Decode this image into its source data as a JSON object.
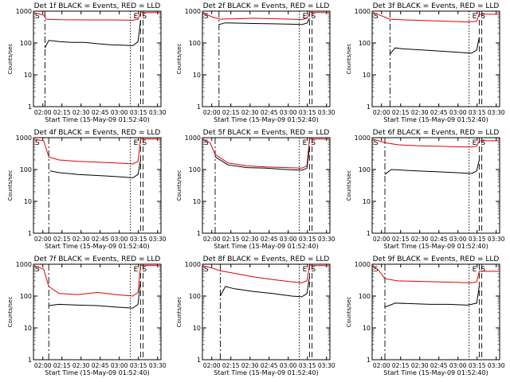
{
  "colors": {
    "events": "#000000",
    "lld": "#e00000",
    "axis": "#000000"
  },
  "legend_text": "BLACK = Events, RED = LLD",
  "shared": {
    "ylabel": "Counts/sec",
    "xlabel": "Start Time (15-May-09 01:52:40)",
    "xticks": [
      "02:00",
      "02:15",
      "02:30",
      "02:45",
      "03:00",
      "03:15",
      "03:30"
    ],
    "xtick_minutes": [
      7.33,
      22.33,
      37.33,
      52.33,
      67.33,
      82.33,
      97.33
    ],
    "yticks": [
      "1",
      "10",
      "100",
      "1000"
    ],
    "yscale": "log",
    "ylim": [
      1,
      1000
    ],
    "xlim_minutes": [
      0,
      100
    ],
    "marker_S": "S",
    "marker_E": "E"
  },
  "chart_data": [
    {
      "type": "line",
      "title": "Det 1f BLACK = Events, RED = LLD",
      "det": "1f",
      "series": [
        {
          "values": [
            [
              0,
              900
            ],
            [
              8,
              750
            ],
            [
              10,
              560
            ],
            [
              20,
              540
            ],
            [
              40,
              530
            ],
            [
              60,
              530
            ],
            [
              78,
              520
            ],
            [
              82,
              560
            ],
            [
              84,
              900
            ],
            [
              100,
              900
            ]
          ]
        },
        {
          "values": [
            [
              9,
              70
            ],
            [
              12,
              120
            ],
            [
              20,
              110
            ],
            [
              30,
              105
            ],
            [
              40,
              105
            ],
            [
              50,
              95
            ],
            [
              60,
              88
            ],
            [
              70,
              85
            ],
            [
              78,
              82
            ],
            [
              82,
              110
            ],
            [
              84,
              500
            ]
          ]
        }
      ],
      "vlines": [
        {
          "x": 9,
          "style": "dashdot"
        },
        {
          "x": 76,
          "style": "dotted"
        },
        {
          "x": 84,
          "style": "dashed"
        },
        {
          "x": 86,
          "style": "dashed"
        }
      ]
    },
    {
      "type": "line",
      "title": "Det 2f BLACK = Events, RED = LLD",
      "det": "2f",
      "series": [
        {
          "values": [
            [
              0,
              900
            ],
            [
              8,
              650
            ],
            [
              14,
              560
            ],
            [
              20,
              570
            ],
            [
              30,
              580
            ],
            [
              40,
              600
            ],
            [
              55,
              580
            ],
            [
              70,
              560
            ],
            [
              78,
              540
            ],
            [
              82,
              600
            ],
            [
              84,
              900
            ],
            [
              100,
              900
            ]
          ]
        },
        {
          "values": [
            [
              13,
              380
            ],
            [
              18,
              430
            ],
            [
              30,
              420
            ],
            [
              40,
              410
            ],
            [
              55,
              400
            ],
            [
              70,
              390
            ],
            [
              78,
              380
            ],
            [
              82,
              420
            ],
            [
              84,
              600
            ]
          ]
        }
      ],
      "vlines": [
        {
          "x": 13,
          "style": "dashdot"
        },
        {
          "x": 76,
          "style": "dotted"
        },
        {
          "x": 84,
          "style": "dashed"
        },
        {
          "x": 86,
          "style": "dashed"
        }
      ]
    },
    {
      "type": "line",
      "title": "Det 3f BLACK = Events, RED = LLD",
      "det": "3f",
      "series": [
        {
          "values": [
            [
              0,
              900
            ],
            [
              8,
              700
            ],
            [
              14,
              560
            ],
            [
              25,
              530
            ],
            [
              40,
              510
            ],
            [
              60,
              480
            ],
            [
              75,
              460
            ],
            [
              82,
              480
            ],
            [
              84,
              800
            ],
            [
              100,
              800
            ]
          ]
        },
        {
          "values": [
            [
              14,
              45
            ],
            [
              18,
              70
            ],
            [
              25,
              65
            ],
            [
              40,
              60
            ],
            [
              55,
              55
            ],
            [
              70,
              50
            ],
            [
              78,
              48
            ],
            [
              82,
              60
            ],
            [
              84,
              150
            ]
          ]
        }
      ],
      "vlines": [
        {
          "x": 14,
          "style": "dashdot"
        },
        {
          "x": 76,
          "style": "dotted"
        },
        {
          "x": 84,
          "style": "dashed"
        },
        {
          "x": 86,
          "style": "dashed"
        }
      ]
    },
    {
      "type": "line",
      "title": "Det 4f BLACK = Events, RED = LLD",
      "det": "4f",
      "series": [
        {
          "values": [
            [
              0,
              900
            ],
            [
              8,
              800
            ],
            [
              12,
              250
            ],
            [
              20,
              200
            ],
            [
              35,
              180
            ],
            [
              50,
              170
            ],
            [
              65,
              160
            ],
            [
              78,
              150
            ],
            [
              82,
              180
            ],
            [
              84,
              900
            ],
            [
              100,
              900
            ]
          ]
        },
        {
          "values": [
            [
              13,
              90
            ],
            [
              20,
              80
            ],
            [
              35,
              70
            ],
            [
              50,
              65
            ],
            [
              65,
              60
            ],
            [
              78,
              55
            ],
            [
              82,
              70
            ],
            [
              84,
              200
            ]
          ]
        }
      ],
      "vlines": [
        {
          "x": 12,
          "style": "dashdot"
        },
        {
          "x": 76,
          "style": "dotted"
        },
        {
          "x": 84,
          "style": "dashed"
        },
        {
          "x": 86,
          "style": "dashed"
        }
      ]
    },
    {
      "type": "line",
      "title": "Det 5f BLACK = Events, RED = LLD",
      "det": "5f",
      "series": [
        {
          "values": [
            [
              0,
              900
            ],
            [
              6,
              700
            ],
            [
              10,
              300
            ],
            [
              20,
              160
            ],
            [
              35,
              130
            ],
            [
              50,
              120
            ],
            [
              65,
              115
            ],
            [
              78,
              110
            ],
            [
              82,
              130
            ],
            [
              84,
              900
            ],
            [
              100,
              900
            ]
          ]
        },
        {
          "values": [
            [
              10,
              250
            ],
            [
              20,
              140
            ],
            [
              35,
              115
            ],
            [
              50,
              110
            ],
            [
              65,
              100
            ],
            [
              78,
              95
            ],
            [
              82,
              110
            ],
            [
              84,
              500
            ]
          ]
        }
      ],
      "vlines": [
        {
          "x": 10,
          "style": "dashdot"
        },
        {
          "x": 76,
          "style": "dotted"
        },
        {
          "x": 84,
          "style": "dashed"
        },
        {
          "x": 86,
          "style": "dashed"
        }
      ]
    },
    {
      "type": "line",
      "title": "Det 6f BLACK = Events, RED = LLD",
      "det": "6f",
      "series": [
        {
          "values": [
            [
              0,
              900
            ],
            [
              5,
              800
            ],
            [
              10,
              700
            ],
            [
              20,
              600
            ],
            [
              35,
              560
            ],
            [
              50,
              540
            ],
            [
              65,
              520
            ],
            [
              78,
              510
            ],
            [
              82,
              540
            ],
            [
              84,
              800
            ],
            [
              100,
              800
            ]
          ]
        },
        {
          "values": [
            [
              10,
              70
            ],
            [
              15,
              100
            ],
            [
              25,
              95
            ],
            [
              35,
              90
            ],
            [
              50,
              85
            ],
            [
              65,
              80
            ],
            [
              78,
              75
            ],
            [
              82,
              90
            ],
            [
              84,
              200
            ]
          ]
        }
      ],
      "vlines": [
        {
          "x": 10,
          "style": "dashdot"
        },
        {
          "x": 76,
          "style": "dotted"
        },
        {
          "x": 84,
          "style": "dashed"
        },
        {
          "x": 86,
          "style": "dashed"
        }
      ]
    },
    {
      "type": "line",
      "title": "Det 7f BLACK = Events, RED = LLD",
      "det": "7f",
      "series": [
        {
          "values": [
            [
              0,
              900
            ],
            [
              8,
              700
            ],
            [
              12,
              200
            ],
            [
              20,
              120
            ],
            [
              35,
              110
            ],
            [
              50,
              130
            ],
            [
              65,
              110
            ],
            [
              78,
              100
            ],
            [
              82,
              130
            ],
            [
              84,
              900
            ],
            [
              100,
              900
            ]
          ]
        },
        {
          "values": [
            [
              12,
              50
            ],
            [
              20,
              55
            ],
            [
              35,
              52
            ],
            [
              50,
              50
            ],
            [
              65,
              45
            ],
            [
              78,
              42
            ],
            [
              82,
              55
            ],
            [
              84,
              300
            ]
          ]
        }
      ],
      "vlines": [
        {
          "x": 12,
          "style": "dashdot"
        },
        {
          "x": 76,
          "style": "dotted"
        },
        {
          "x": 84,
          "style": "dashed"
        },
        {
          "x": 86,
          "style": "dashed"
        }
      ]
    },
    {
      "type": "line",
      "title": "Det 8f BLACK = Events, RED = LLD",
      "det": "8f",
      "series": [
        {
          "values": [
            [
              0,
              900
            ],
            [
              8,
              750
            ],
            [
              14,
              620
            ],
            [
              25,
              520
            ],
            [
              40,
              400
            ],
            [
              55,
              330
            ],
            [
              70,
              280
            ],
            [
              78,
              260
            ],
            [
              82,
              300
            ],
            [
              84,
              900
            ],
            [
              100,
              900
            ]
          ]
        },
        {
          "values": [
            [
              14,
              100
            ],
            [
              18,
              200
            ],
            [
              25,
              170
            ],
            [
              40,
              140
            ],
            [
              55,
              120
            ],
            [
              70,
              100
            ],
            [
              78,
              95
            ],
            [
              82,
              120
            ],
            [
              84,
              400
            ]
          ]
        }
      ],
      "vlines": [
        {
          "x": 14,
          "style": "dashdot"
        },
        {
          "x": 76,
          "style": "dotted"
        },
        {
          "x": 84,
          "style": "dashed"
        },
        {
          "x": 86,
          "style": "dashed"
        }
      ]
    },
    {
      "type": "line",
      "title": "Det 9f BLACK = Events, RED = LLD",
      "det": "9f",
      "series": [
        {
          "values": [
            [
              0,
              900
            ],
            [
              5,
              650
            ],
            [
              10,
              350
            ],
            [
              20,
              300
            ],
            [
              35,
              290
            ],
            [
              50,
              280
            ],
            [
              65,
              270
            ],
            [
              78,
              260
            ],
            [
              82,
              280
            ],
            [
              84,
              600
            ],
            [
              100,
              600
            ]
          ]
        },
        {
          "values": [
            [
              10,
              45
            ],
            [
              18,
              60
            ],
            [
              30,
              58
            ],
            [
              45,
              55
            ],
            [
              60,
              55
            ],
            [
              75,
              52
            ],
            [
              82,
              60
            ],
            [
              84,
              200
            ]
          ]
        }
      ],
      "vlines": [
        {
          "x": 10,
          "style": "dashdot"
        },
        {
          "x": 76,
          "style": "dotted"
        },
        {
          "x": 84,
          "style": "dashed"
        },
        {
          "x": 86,
          "style": "dashed"
        }
      ]
    }
  ]
}
